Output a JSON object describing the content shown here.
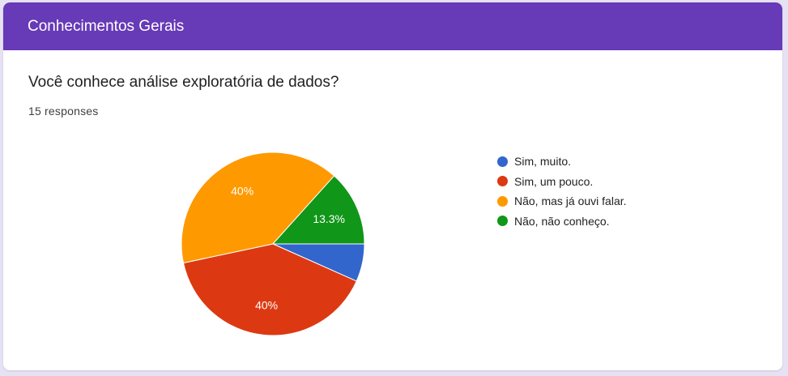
{
  "header": {
    "title": "Conhecimentos Gerais"
  },
  "question": {
    "text": "Você conhece análise exploratória de dados?",
    "responses": "15 responses"
  },
  "colors": {
    "header_bg": "#673ab7",
    "page_bg": "#e6e2f3"
  },
  "chart_data": {
    "type": "pie",
    "title": "",
    "categories": [
      "Sim, muito.",
      "Sim, um pouco.",
      "Não, mas já ouvi falar.",
      "Não, não conheço."
    ],
    "values": [
      1,
      6,
      6,
      2
    ],
    "percent_labels": [
      "",
      "40%",
      "40%",
      "13.3%"
    ],
    "colors": [
      "#3366cc",
      "#dc3912",
      "#ff9900",
      "#109618"
    ],
    "legend_position": "right"
  }
}
